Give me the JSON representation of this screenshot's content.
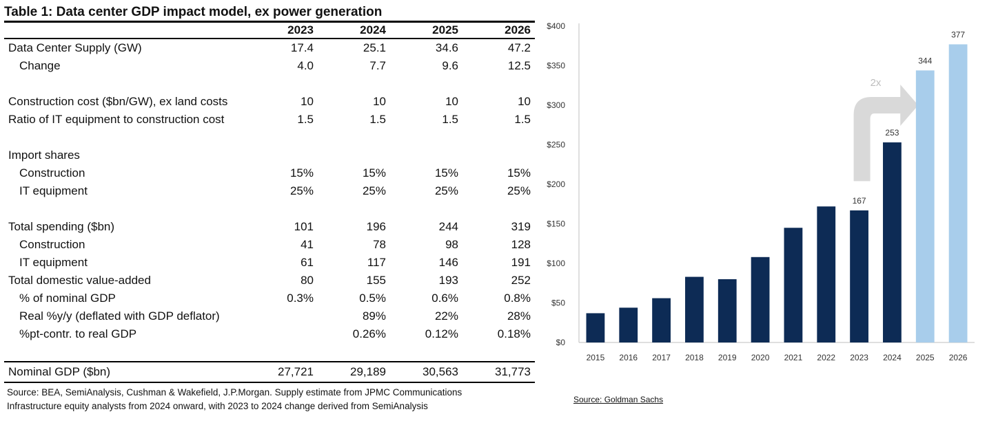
{
  "table": {
    "title": "Table 1: Data center GDP impact model, ex power generation",
    "years": [
      "2023",
      "2024",
      "2025",
      "2026"
    ],
    "rows": [
      {
        "label": "Data Center Supply (GW)",
        "indent": false,
        "values": [
          "17.4",
          "25.1",
          "34.6",
          "47.2"
        ]
      },
      {
        "label": "Change",
        "indent": true,
        "values": [
          "4.0",
          "7.7",
          "9.6",
          "12.5"
        ]
      },
      {
        "spacer": true
      },
      {
        "label": "Construction cost ($bn/GW), ex land costs",
        "indent": false,
        "values": [
          "10",
          "10",
          "10",
          "10"
        ]
      },
      {
        "label": "Ratio of IT equipment to construction cost",
        "indent": false,
        "values": [
          "1.5",
          "1.5",
          "1.5",
          "1.5"
        ]
      },
      {
        "spacer": true
      },
      {
        "label": "Import shares",
        "indent": false,
        "values": [
          "",
          "",
          "",
          ""
        ]
      },
      {
        "label": "Construction",
        "indent": true,
        "values": [
          "15%",
          "15%",
          "15%",
          "15%"
        ]
      },
      {
        "label": "IT equipment",
        "indent": true,
        "values": [
          "25%",
          "25%",
          "25%",
          "25%"
        ]
      },
      {
        "spacer": true
      },
      {
        "label": "Total spending ($bn)",
        "indent": false,
        "values": [
          "101",
          "196",
          "244",
          "319"
        ]
      },
      {
        "label": "Construction",
        "indent": true,
        "values": [
          "41",
          "78",
          "98",
          "128"
        ]
      },
      {
        "label": "IT equipment",
        "indent": true,
        "values": [
          "61",
          "117",
          "146",
          "191"
        ]
      },
      {
        "label": "Total domestic value-added",
        "indent": false,
        "values": [
          "80",
          "155",
          "193",
          "252"
        ]
      },
      {
        "label": "% of nominal GDP",
        "indent": true,
        "values": [
          "0.3%",
          "0.5%",
          "0.6%",
          "0.8%"
        ]
      },
      {
        "label": "Real %y/y (deflated with GDP deflator)",
        "indent": true,
        "values": [
          "",
          "89%",
          "22%",
          "28%"
        ]
      },
      {
        "label": "%pt-contr. to real GDP",
        "indent": true,
        "values": [
          "",
          "0.26%",
          "0.12%",
          "0.18%"
        ]
      },
      {
        "spacer": true
      }
    ],
    "last_row": {
      "label": "Nominal GDP ($bn)",
      "values": [
        "27,721",
        "29,189",
        "30,563",
        "31,773"
      ]
    },
    "source_line1": "Source: BEA, SemiAnalysis, Cushman & Wakefield, J.P.Morgan. Supply estimate from JPMC Communications",
    "source_line2": "Infrastructure equity analysts from 2024 onward, with 2023 to 2024 change derived from SemiAnalysis"
  },
  "chart_data": {
    "type": "bar",
    "categories": [
      "2015",
      "2016",
      "2017",
      "2018",
      "2019",
      "2020",
      "2021",
      "2022",
      "2023",
      "2024",
      "2025",
      "2026"
    ],
    "values": [
      37,
      44,
      56,
      83,
      80,
      108,
      145,
      172,
      167,
      253,
      344,
      377
    ],
    "forecast_from_index": 10,
    "data_labels": {
      "8": "167",
      "9": "253",
      "10": "344",
      "11": "377"
    },
    "ylim": [
      0,
      400
    ],
    "yticks": [
      0,
      50,
      100,
      150,
      200,
      250,
      300,
      350,
      400
    ],
    "ytick_labels": [
      "$0",
      "$50",
      "$100",
      "$150",
      "$200",
      "$250",
      "$300",
      "$350",
      "$400"
    ],
    "annotation": "2x",
    "colors": {
      "actual": "#0d2b55",
      "forecast": "#a8cdeb",
      "arrow": "#d9d9d9",
      "axis": "#bfbfbf"
    },
    "source": "Source: Goldman Sachs"
  }
}
